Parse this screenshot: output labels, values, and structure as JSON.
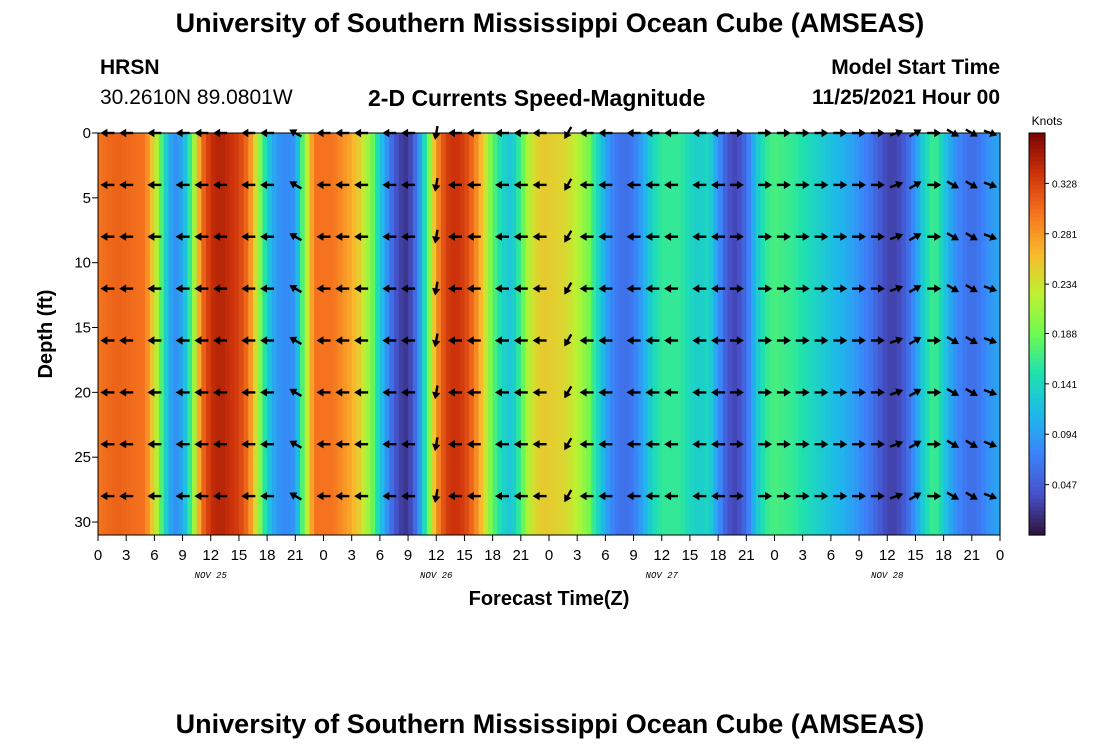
{
  "header": {
    "title_top": "University of Southern Mississippi Ocean Cube (AMSEAS)",
    "station": "HRSN",
    "coordinates": "30.2610N  89.0801W",
    "subtitle": "2-D Currents Speed-Magnitude",
    "model_start_label": "Model Start Time",
    "model_start_value": "11/25/2021 Hour 00",
    "title_bottom": "University of Southern Mississippi Ocean Cube (AMSEAS)"
  },
  "chart_data": {
    "type": "heatmap",
    "title": "2-D Currents Speed-Magnitude",
    "xlabel": "Forecast Time(Z)",
    "ylabel": "Depth (ft)",
    "colorbar_label": "Knots",
    "colorbar_ticks": [
      "0.328",
      "0.281",
      "0.234",
      "0.188",
      "0.141",
      "0.094",
      "0.047"
    ],
    "color_range": [
      0.0,
      0.375
    ],
    "xlim_hours": [
      0,
      96
    ],
    "ylim_ft": [
      0,
      31
    ],
    "y_ticks": [
      "0",
      "5",
      "10",
      "15",
      "20",
      "25",
      "30"
    ],
    "x_tick_labels": [
      "0",
      "3",
      "6",
      "9",
      "12",
      "15",
      "18",
      "21",
      "0",
      "3",
      "6",
      "9",
      "12",
      "15",
      "18",
      "21",
      "0",
      "3",
      "6",
      "9",
      "12",
      "15",
      "18",
      "21",
      "0",
      "3",
      "6",
      "9",
      "12",
      "15",
      "18",
      "21",
      "0"
    ],
    "date_labels": [
      {
        "text": "NOV 25",
        "hour": 12
      },
      {
        "text": "NOV 26",
        "hour": 36
      },
      {
        "text": "NOV 27",
        "hour": 60
      },
      {
        "text": "NOV 28",
        "hour": 84
      }
    ],
    "speed_profile_knots": [
      [
        0,
        0.3
      ],
      [
        2,
        0.31
      ],
      [
        5,
        0.3
      ],
      [
        6,
        0.24
      ],
      [
        7,
        0.15
      ],
      [
        8,
        0.08
      ],
      [
        9,
        0.1
      ],
      [
        10,
        0.18
      ],
      [
        11,
        0.3
      ],
      [
        12,
        0.34
      ],
      [
        13,
        0.35
      ],
      [
        14,
        0.34
      ],
      [
        15,
        0.33
      ],
      [
        16,
        0.3
      ],
      [
        17,
        0.22
      ],
      [
        18,
        0.13
      ],
      [
        19,
        0.09
      ],
      [
        20,
        0.08
      ],
      [
        21,
        0.09
      ],
      [
        22,
        0.2
      ],
      [
        23,
        0.3
      ],
      [
        25,
        0.3
      ],
      [
        27,
        0.27
      ],
      [
        28,
        0.24
      ],
      [
        29,
        0.2
      ],
      [
        30,
        0.13
      ],
      [
        31,
        0.07
      ],
      [
        32,
        0.03
      ],
      [
        33,
        0.02
      ],
      [
        34,
        0.07
      ],
      [
        35,
        0.17
      ],
      [
        36,
        0.28
      ],
      [
        37,
        0.33
      ],
      [
        38,
        0.34
      ],
      [
        39,
        0.33
      ],
      [
        40,
        0.3
      ],
      [
        41,
        0.25
      ],
      [
        42,
        0.18
      ],
      [
        43,
        0.14
      ],
      [
        44,
        0.12
      ],
      [
        45,
        0.17
      ],
      [
        46,
        0.23
      ],
      [
        47,
        0.25
      ],
      [
        48,
        0.25
      ],
      [
        50,
        0.24
      ],
      [
        52,
        0.2
      ],
      [
        53,
        0.15
      ],
      [
        54,
        0.1
      ],
      [
        55,
        0.07
      ],
      [
        56,
        0.06
      ],
      [
        57,
        0.07
      ],
      [
        58,
        0.1
      ],
      [
        59,
        0.14
      ],
      [
        60,
        0.16
      ],
      [
        62,
        0.16
      ],
      [
        63,
        0.14
      ],
      [
        64,
        0.13
      ],
      [
        65,
        0.14
      ],
      [
        66,
        0.09
      ],
      [
        67,
        0.04
      ],
      [
        68,
        0.03
      ],
      [
        69,
        0.06
      ],
      [
        70,
        0.12
      ],
      [
        71,
        0.16
      ],
      [
        72,
        0.17
      ],
      [
        74,
        0.16
      ],
      [
        76,
        0.14
      ],
      [
        78,
        0.12
      ],
      [
        80,
        0.1
      ],
      [
        82,
        0.07
      ],
      [
        83,
        0.05
      ],
      [
        84,
        0.03
      ],
      [
        85,
        0.03
      ],
      [
        86,
        0.05
      ],
      [
        87,
        0.09
      ],
      [
        88,
        0.14
      ],
      [
        89,
        0.17
      ],
      [
        90,
        0.13
      ],
      [
        91,
        0.09
      ],
      [
        92,
        0.07
      ],
      [
        93,
        0.06
      ],
      [
        94,
        0.07
      ],
      [
        95,
        0.09
      ],
      [
        96,
        0.1
      ]
    ],
    "current_arrows": {
      "depths_ft": [
        0,
        4,
        8,
        12,
        16,
        20,
        24,
        28
      ],
      "hours": [
        1,
        3,
        6,
        9,
        11,
        13,
        16,
        18,
        21,
        24,
        26,
        28,
        31,
        33,
        36,
        38,
        40,
        43,
        45,
        47,
        50,
        52,
        54,
        57,
        59,
        61,
        64,
        66,
        68,
        71,
        73,
        75,
        77,
        79,
        81,
        83,
        85,
        87,
        89,
        91,
        93,
        95
      ],
      "directions_deg": [
        180,
        180,
        180,
        180,
        180,
        180,
        180,
        180,
        150,
        180,
        180,
        180,
        180,
        180,
        260,
        180,
        180,
        180,
        180,
        180,
        240,
        180,
        180,
        180,
        180,
        180,
        180,
        180,
        0,
        0,
        0,
        0,
        0,
        0,
        0,
        0,
        20,
        30,
        0,
        330,
        330,
        340
      ]
    }
  }
}
